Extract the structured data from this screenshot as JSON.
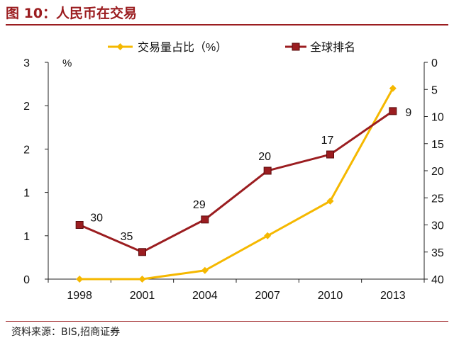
{
  "title": "图 10：人民币在交易",
  "source": "资料来源：BIS,招商证券",
  "chart_data": {
    "type": "line",
    "x": [
      "1998",
      "2001",
      "2004",
      "2007",
      "2010",
      "2013"
    ],
    "left_axis": {
      "unit": "%",
      "ticks": [
        "3",
        "2",
        "2",
        "1",
        "1",
        "0"
      ],
      "range": [
        0,
        2.5
      ]
    },
    "right_axis": {
      "ticks": [
        "0",
        "5",
        "10",
        "15",
        "20",
        "25",
        "30",
        "35",
        "40"
      ],
      "range": [
        40,
        0
      ],
      "inverted": true
    },
    "series": [
      {
        "name": "交易量占比（%）",
        "axis": "left",
        "color": "#f5b800",
        "values": [
          0,
          0,
          0.1,
          0.5,
          0.9,
          2.2
        ],
        "labels": []
      },
      {
        "name": "全球排名",
        "axis": "right",
        "color": "#9b1d20",
        "values": [
          30,
          35,
          29,
          20,
          17,
          9
        ],
        "labels": [
          "30",
          "35",
          "29",
          "20",
          "17",
          "9"
        ]
      }
    ],
    "legend_position": "top"
  }
}
